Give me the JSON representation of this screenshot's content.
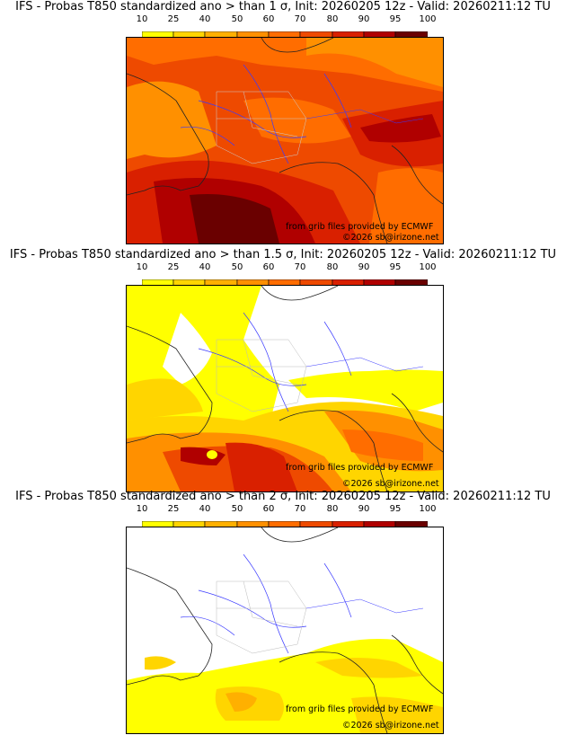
{
  "colorbar": {
    "ticks": [
      "10",
      "25",
      "40",
      "50",
      "60",
      "70",
      "80",
      "90",
      "95",
      "100"
    ],
    "colors": [
      "#ffff00",
      "#ffd500",
      "#ffb000",
      "#ff9000",
      "#ff6d00",
      "#ee4a00",
      "#d92000",
      "#b00000",
      "#6a0000"
    ]
  },
  "panels": [
    {
      "title": "IFS - Probas T850  standardized ano > than 1 σ, Init: 20260205 12z - Valid: 20260211:12 TU",
      "credit": "from grib files provided by ECMWF",
      "copyright": "©2026 sb@irizone.net",
      "threshold_sigma": "1",
      "base_prob_class": "70"
    },
    {
      "title": "IFS - Probas T850  standardized ano > than 1.5 σ, Init: 20260205 12z - Valid: 20260211:12 TU",
      "credit": "from grib files provided by ECMWF",
      "copyright": "©2026 sb@irizone.net",
      "threshold_sigma": "1.5",
      "base_prob_class": "10"
    },
    {
      "title": "IFS - Probas T850  standardized ano > than 2 σ, Init: 20260205 12z - Valid: 20260211:12 TU",
      "credit": "from grib files provided by ECMWF",
      "copyright": "©2026 sb@irizone.net",
      "threshold_sigma": "2",
      "base_prob_class": "<10"
    }
  ]
}
